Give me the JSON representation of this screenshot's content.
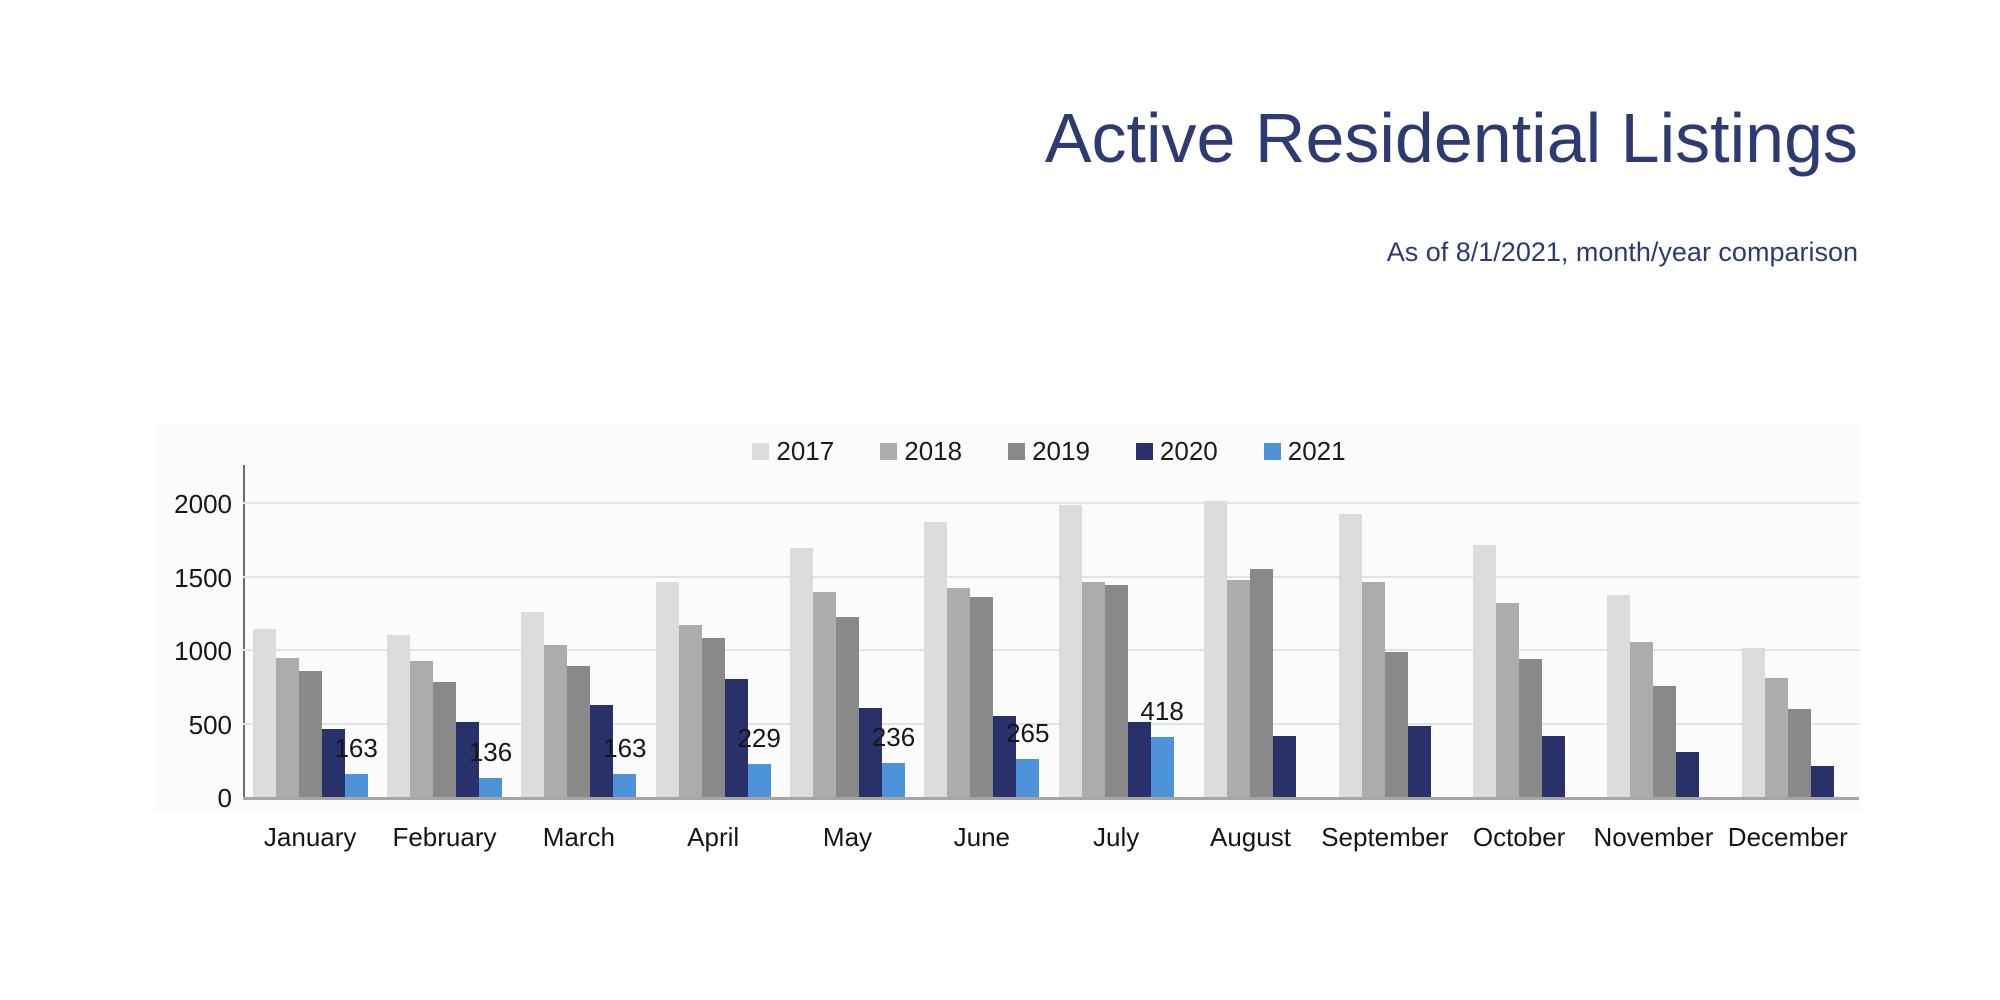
{
  "header": {
    "title": "Active Residential Listings",
    "subtitle": "As of 8/1/2021, month/year comparison",
    "title_color": "#2d3b72"
  },
  "chart_data": {
    "type": "bar",
    "title": "Active Residential Listings",
    "subtitle": "As of 8/1/2021, month/year comparison",
    "categories": [
      "January",
      "February",
      "March",
      "April",
      "May",
      "June",
      "July",
      "August",
      "September",
      "October",
      "November",
      "December"
    ],
    "series": [
      {
        "name": "2017",
        "color": "#dcdcdc",
        "values": [
          1150,
          1110,
          1265,
          1470,
          1700,
          1880,
          1990,
          2020,
          1930,
          1720,
          1380,
          1020
        ],
        "data_labels": false
      },
      {
        "name": "2018",
        "color": "#acacac",
        "values": [
          955,
          930,
          1040,
          1180,
          1400,
          1430,
          1470,
          1480,
          1470,
          1330,
          1060,
          815
        ],
        "data_labels": false
      },
      {
        "name": "2019",
        "color": "#898989",
        "values": [
          865,
          790,
          900,
          1090,
          1230,
          1370,
          1450,
          1560,
          990,
          945,
          760,
          605
        ],
        "data_labels": false
      },
      {
        "name": "2020",
        "color": "#29316b",
        "values": [
          470,
          515,
          630,
          810,
          610,
          560,
          515,
          425,
          490,
          420,
          310,
          215
        ],
        "data_labels": false
      },
      {
        "name": "2021",
        "color": "#4d93d9",
        "values": [
          163,
          136,
          163,
          229,
          236,
          265,
          418,
          null,
          null,
          null,
          null,
          null
        ],
        "data_labels": true
      }
    ],
    "yticks": [
      0,
      500,
      1000,
      1500,
      2000
    ],
    "ylim": [
      0,
      2265
    ],
    "grid": true,
    "legend_position": "top-center",
    "axis_colors": {
      "gridline": "#dde3ef",
      "baseline": "#a6a6a6",
      "yaxis": "#6e6e6e"
    }
  }
}
